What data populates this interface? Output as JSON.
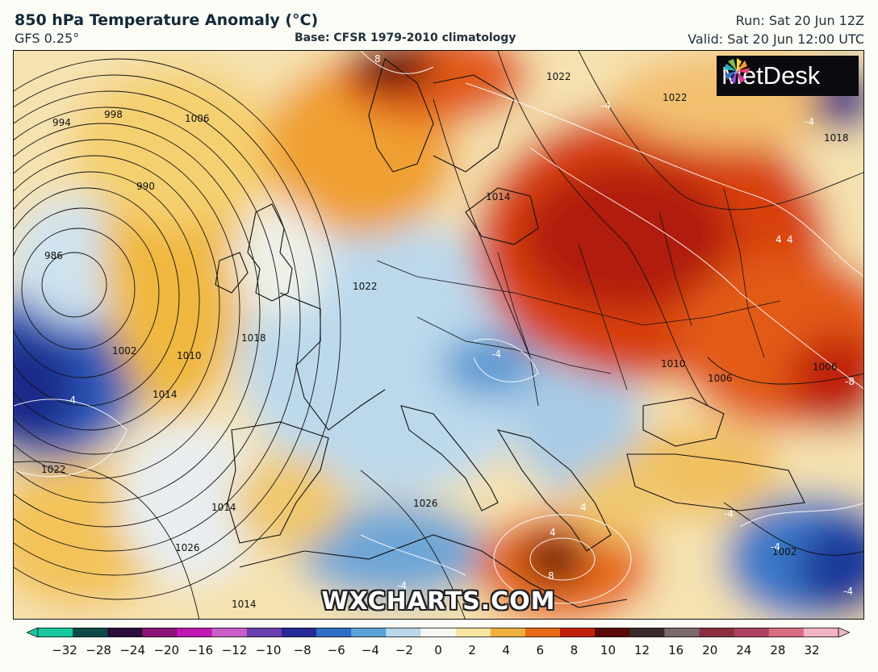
{
  "header": {
    "title": "850 hPa Temperature Anomaly (°C)",
    "model": "GFS 0.25°",
    "base": "Base: CFSR 1979-2010 climatology",
    "run": "Run: Sat 20 Jun 12Z",
    "valid": "Valid: Sat 20 Jun 12:00 UTC"
  },
  "logo": {
    "brand": "MetDesk"
  },
  "watermark": "WXCHARTS.COM",
  "colorbar": {
    "ticks": [
      "−32",
      "−28",
      "−24",
      "−20",
      "−16",
      "−12",
      "−10",
      "−8",
      "−6",
      "−4",
      "−2",
      "0",
      "2",
      "4",
      "6",
      "8",
      "10",
      "12",
      "16",
      "20",
      "24",
      "28",
      "32"
    ],
    "colors": [
      "#19c7a0",
      "#0e4a48",
      "#2a0d3a",
      "#8d1278",
      "#c016b4",
      "#c85cc8",
      "#6a3fb0",
      "#262a98",
      "#2f6ec4",
      "#5aa2d8",
      "#b8d8ea",
      "#f6f8f4",
      "#f8e6a0",
      "#f0b040",
      "#e86a18",
      "#c0200c",
      "#5a0a0a",
      "#3a2a2a",
      "#7a6a6a",
      "#8a3040",
      "#b04060",
      "#d86c84",
      "#f2b4c4"
    ]
  },
  "isobar_labels": [
    "994",
    "998",
    "1006",
    "990",
    "986",
    "1002",
    "1010",
    "1014",
    "1018",
    "1022",
    "1026",
    "1014",
    "1022",
    "1022",
    "1014",
    "1022",
    "1018",
    "1006",
    "1026",
    "1010",
    "1006",
    "1002",
    "1014"
  ],
  "anomaly_labels": [
    "8",
    "-4",
    "-4",
    "4",
    "4",
    "-4",
    "-8",
    "-4",
    "-4",
    "4",
    "8",
    "-4",
    "-4",
    "-4",
    "4"
  ]
}
